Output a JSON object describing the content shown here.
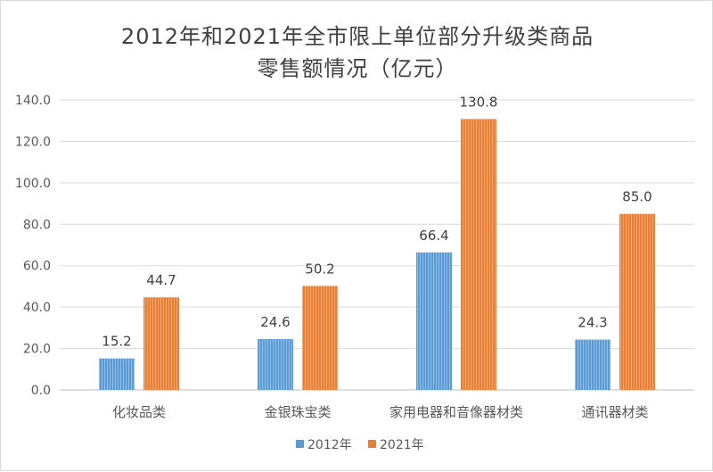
{
  "chart_data": {
    "type": "bar",
    "title_lines": [
      "2012年和2021年全市限上单位部分升级类商品",
      "零售额情况（亿元）"
    ],
    "categories": [
      "化妆品类",
      "金银珠宝类",
      "家用电器和音像器材类",
      "通讯器材类"
    ],
    "series": [
      {
        "name": "2012年",
        "values": [
          15.2,
          24.6,
          66.4,
          24.3
        ],
        "color": "#5b9bd5"
      },
      {
        "name": "2021年",
        "values": [
          44.7,
          50.2,
          130.8,
          85.0
        ],
        "color": "#ed7d31"
      }
    ],
    "data_labels": [
      [
        "15.2",
        "24.6",
        "66.4",
        "24.3"
      ],
      [
        "44.7",
        "50.2",
        "130.8",
        "85.0"
      ]
    ],
    "yticks": [
      "0.0",
      "20.0",
      "40.0",
      "60.0",
      "80.0",
      "100.0",
      "120.0",
      "140.0"
    ],
    "ylim": [
      0,
      140
    ],
    "grid": true,
    "legend_position": "bottom"
  }
}
